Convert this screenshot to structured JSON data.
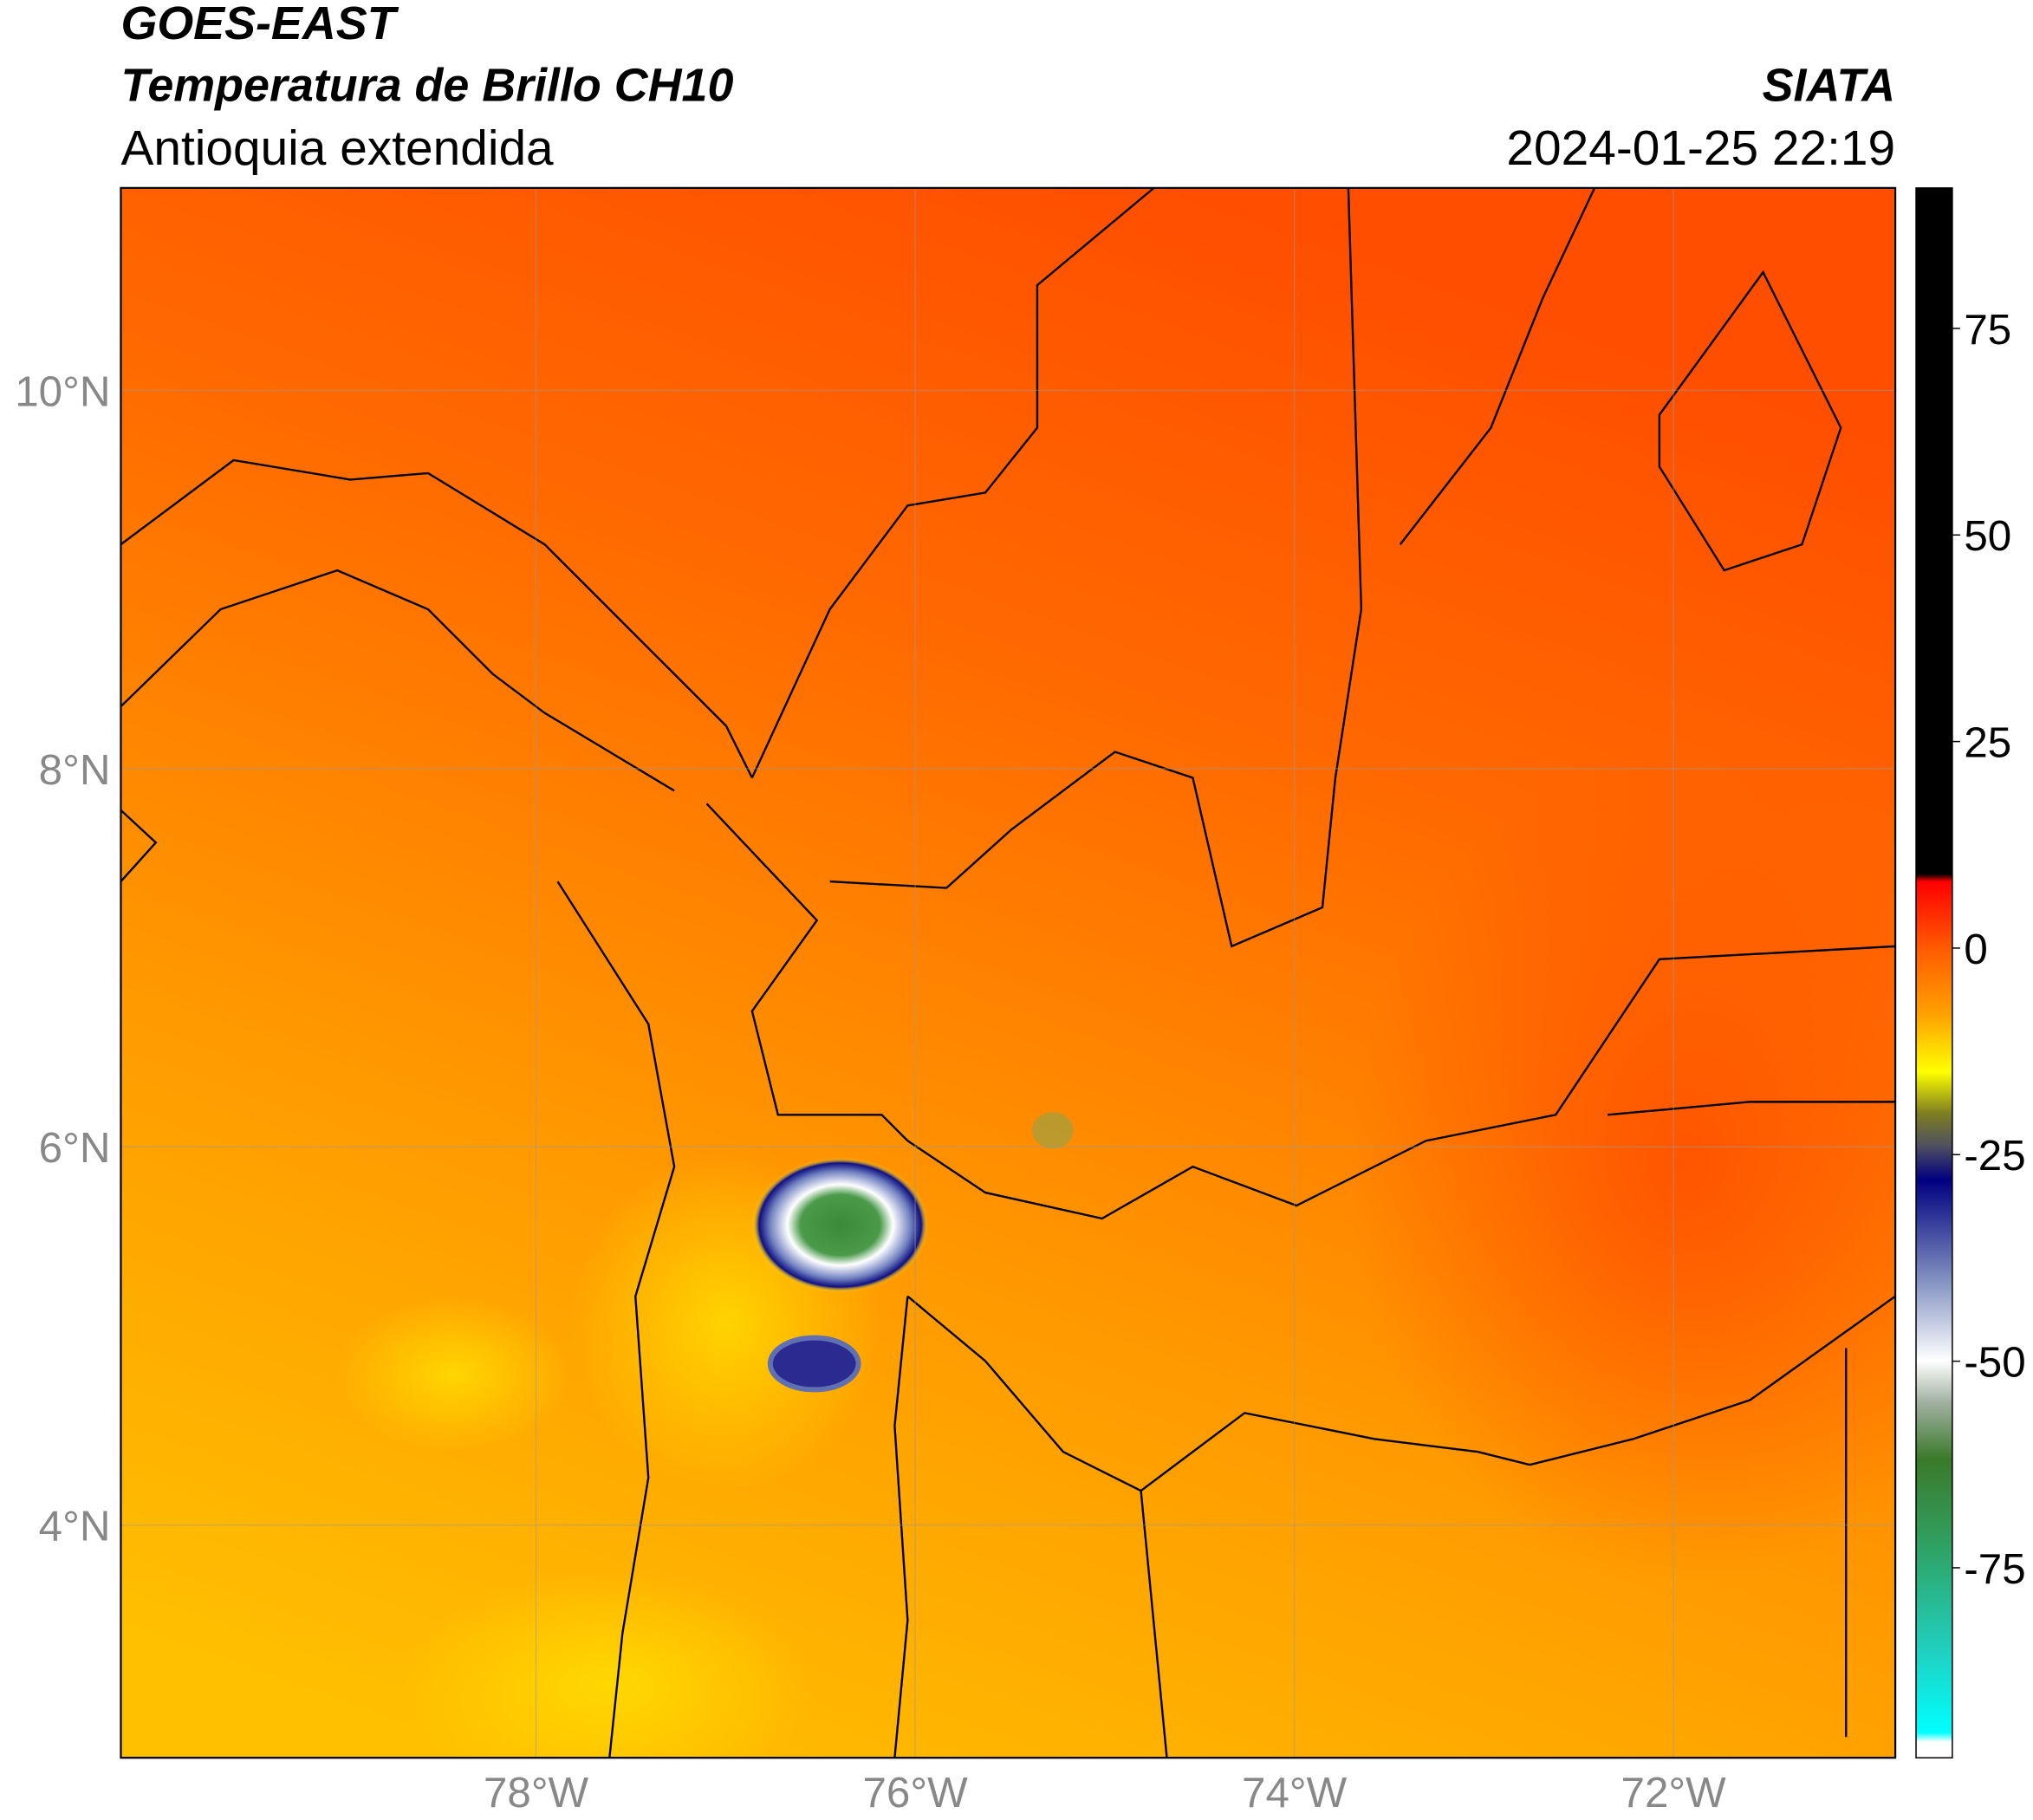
{
  "header": {
    "title": "GOES-EAST",
    "subtitle": "Temperatura de Brillo CH10",
    "region": "Antioquia extendida",
    "source": "SIATA",
    "timestamp": "2024-01-25 22:19"
  },
  "map": {
    "lonlim": [
      -80.19,
      -70.83
    ],
    "latlim": [
      2.77,
      11.07
    ],
    "lonticks": [
      {
        "value": -78,
        "label": "78°W"
      },
      {
        "value": -76,
        "label": "76°W"
      },
      {
        "value": -74,
        "label": "74°W"
      },
      {
        "value": -72,
        "label": "72°W"
      }
    ],
    "latticks": [
      {
        "value": 10,
        "label": "10°N"
      },
      {
        "value": 8,
        "label": "8°N"
      },
      {
        "value": 6,
        "label": "6°N"
      },
      {
        "value": 4,
        "label": "4°N"
      }
    ],
    "grid": true
  },
  "colorbar": {
    "lim": [
      -98,
      92
    ],
    "ticks": [
      75,
      50,
      25,
      0,
      -25,
      -50,
      -75
    ]
  }
}
